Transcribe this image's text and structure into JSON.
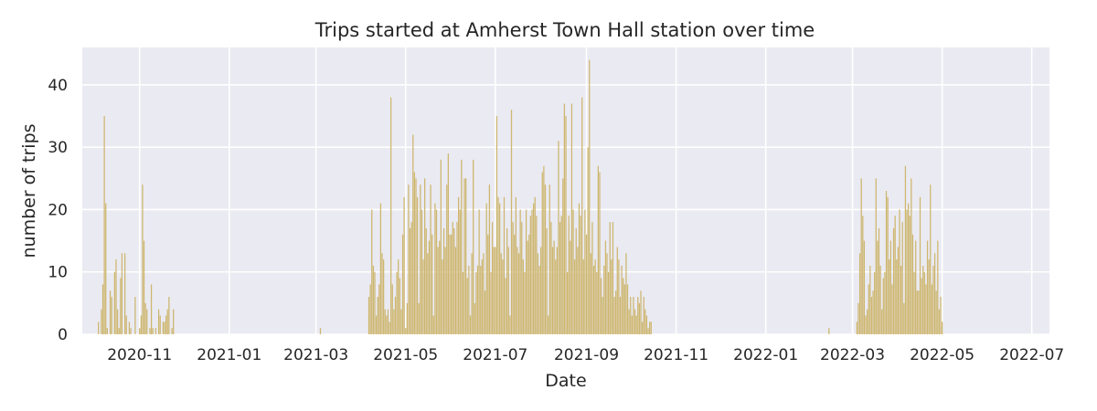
{
  "chart_data": {
    "type": "bar",
    "title": "Trips started at Amherst Town Hall station over time",
    "xlabel": "Date",
    "ylabel": "number of trips",
    "ylim": [
      0,
      46
    ],
    "yticks": [
      0,
      10,
      20,
      30,
      40
    ],
    "xlim": [
      "2020-09-23",
      "2022-07-13"
    ],
    "xticks": [
      "2020-11",
      "2021-01",
      "2021-03",
      "2021-05",
      "2021-07",
      "2021-09",
      "2021-11",
      "2022-01",
      "2022-03",
      "2022-05",
      "2022-07"
    ],
    "grid": true,
    "bar_color": "#cdb66e",
    "background_color": "#eaeaf2",
    "start_date": "2020-10-04",
    "daily_values": [
      2,
      0,
      4,
      8,
      35,
      21,
      1,
      0,
      7,
      6,
      0,
      10,
      12,
      4,
      1,
      9,
      13,
      0,
      13,
      3,
      0,
      2,
      1,
      0,
      0,
      6,
      0,
      0,
      1,
      3,
      24,
      15,
      5,
      4,
      0,
      1,
      8,
      1,
      0,
      1,
      0,
      4,
      3,
      0,
      2,
      2,
      3,
      4,
      6,
      0,
      1,
      4,
      0,
      0,
      0,
      0,
      0,
      0,
      0,
      0,
      0,
      0,
      0,
      0,
      0,
      0,
      0,
      0,
      0,
      0,
      0,
      0,
      0,
      0,
      0,
      0,
      0,
      0,
      0,
      0,
      0,
      0,
      0,
      0,
      0,
      0,
      0,
      0,
      0,
      0,
      0,
      0,
      0,
      0,
      0,
      0,
      0,
      0,
      0,
      0,
      0,
      0,
      0,
      0,
      0,
      0,
      0,
      0,
      0,
      0,
      0,
      0,
      0,
      0,
      0,
      0,
      0,
      0,
      0,
      0,
      0,
      0,
      0,
      0,
      0,
      0,
      0,
      0,
      0,
      0,
      0,
      0,
      0,
      0,
      0,
      0,
      0,
      0,
      0,
      0,
      0,
      0,
      0,
      0,
      0,
      0,
      0,
      0,
      0,
      0,
      0,
      1,
      0,
      0,
      0,
      0,
      0,
      0,
      0,
      0,
      0,
      0,
      0,
      0,
      0,
      0,
      0,
      0,
      0,
      0,
      0,
      0,
      0,
      0,
      0,
      0,
      0,
      0,
      0,
      0,
      0,
      0,
      0,
      0,
      6,
      8,
      20,
      11,
      10,
      3,
      6,
      8,
      21,
      13,
      12,
      4,
      3,
      4,
      2,
      38,
      8,
      4,
      6,
      10,
      12,
      9,
      4,
      16,
      22,
      1,
      5,
      24,
      17,
      18,
      32,
      26,
      25,
      22,
      5,
      24,
      20,
      12,
      25,
      17,
      13,
      15,
      24,
      16,
      3,
      21,
      20,
      14,
      15,
      28,
      12,
      17,
      14,
      24,
      29,
      16,
      16,
      18,
      17,
      14,
      18,
      22,
      20,
      28,
      10,
      25,
      25,
      9,
      11,
      3,
      13,
      28,
      5,
      10,
      11,
      20,
      11,
      12,
      13,
      7,
      21,
      16,
      24,
      10,
      18,
      14,
      14,
      35,
      22,
      21,
      13,
      12,
      22,
      9,
      17,
      14,
      3,
      36,
      18,
      16,
      22,
      14,
      13,
      20,
      18,
      12,
      10,
      20,
      15,
      16,
      19,
      20,
      21,
      22,
      19,
      13,
      11,
      14,
      26,
      27,
      24,
      17,
      3,
      24,
      18,
      14,
      15,
      12,
      14,
      31,
      18,
      19,
      25,
      37,
      35,
      10,
      19,
      15,
      37,
      20,
      12,
      17,
      14,
      21,
      19,
      38,
      12,
      20,
      16,
      30,
      44,
      13,
      18,
      11,
      12,
      10,
      27,
      26,
      9,
      6,
      11,
      15,
      13,
      10,
      18,
      12,
      18,
      6,
      7,
      14,
      12,
      6,
      11,
      9,
      8,
      13,
      8,
      4,
      6,
      3,
      6,
      4,
      3,
      6,
      5,
      7,
      2,
      6,
      4,
      3,
      1,
      2,
      2,
      0,
      0,
      0,
      0,
      0,
      0,
      0,
      0,
      0,
      0,
      0,
      0,
      0,
      0,
      0,
      0,
      0,
      0,
      0,
      0,
      0,
      0,
      0,
      0,
      0,
      0,
      0,
      0,
      0,
      0,
      0,
      0,
      0,
      0,
      0,
      0,
      0,
      0,
      0,
      0,
      0,
      0,
      0,
      0,
      0,
      0,
      0,
      0,
      0,
      0,
      0,
      0,
      0,
      0,
      0,
      0,
      0,
      0,
      0,
      0,
      0,
      0,
      0,
      0,
      0,
      0,
      0,
      0,
      0,
      0,
      0,
      0,
      0,
      0,
      0,
      0,
      0,
      0,
      0,
      0,
      0,
      0,
      0,
      0,
      0,
      0,
      0,
      0,
      0,
      0,
      0,
      0,
      0,
      0,
      0,
      0,
      0,
      0,
      0,
      0,
      0,
      0,
      0,
      0,
      0,
      0,
      0,
      0,
      0,
      0,
      0,
      0,
      0,
      0,
      0,
      0,
      0,
      0,
      0,
      0,
      1,
      0,
      0,
      0,
      0,
      0,
      0,
      0,
      0,
      0,
      0,
      0,
      0,
      0,
      0,
      0,
      0,
      0,
      0,
      2,
      5,
      13,
      25,
      19,
      15,
      3,
      4,
      8,
      11,
      6,
      7,
      10,
      25,
      15,
      17,
      11,
      4,
      9,
      10,
      23,
      22,
      12,
      15,
      8,
      17,
      19,
      12,
      14,
      20,
      11,
      18,
      5,
      27,
      20,
      21,
      19,
      25,
      16,
      10,
      15,
      7,
      7,
      22,
      9,
      11,
      10,
      8,
      15,
      12,
      24,
      8,
      11,
      13,
      7,
      15,
      4,
      6,
      2
    ]
  }
}
